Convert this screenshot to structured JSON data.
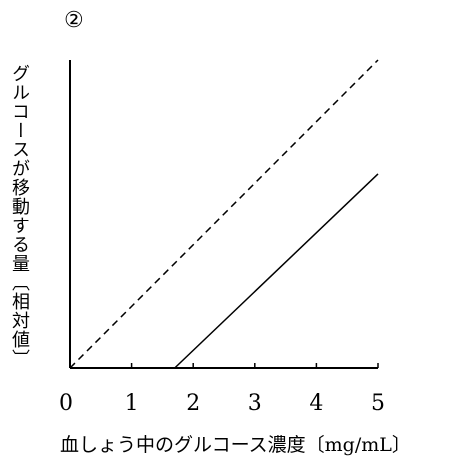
{
  "marker": "②",
  "chart_data": {
    "type": "line",
    "ylabel": "グルコースが移動する量〔相対値〕",
    "xlabel": "血しょう中のグルコース濃度〔mg/mL〕",
    "x_ticks": [
      0,
      1,
      2,
      3,
      4,
      5
    ],
    "xlim": [
      0,
      5
    ],
    "ylim": [
      0,
      10
    ],
    "grid": false,
    "series": [
      {
        "style": "dashed",
        "x": [
          0,
          5
        ],
        "y": [
          0,
          10
        ]
      },
      {
        "style": "solid",
        "x": [
          1.7,
          5
        ],
        "y": [
          0,
          6.3
        ]
      }
    ],
    "colors": {
      "line": "#000000"
    }
  }
}
